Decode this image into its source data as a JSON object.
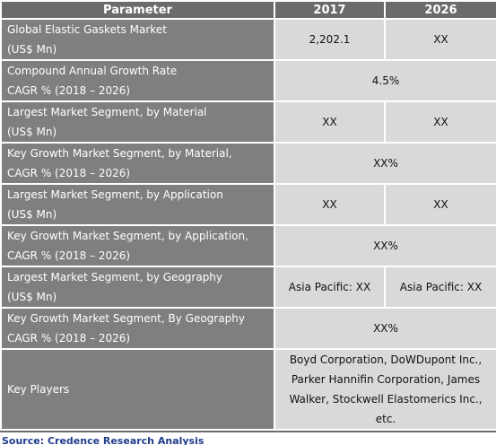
{
  "table": {
    "header": [
      "Parameter",
      "2017",
      "2026"
    ],
    "rows": [
      {
        "label": [
          "Global Elastic Gaskets Market",
          "(US$ Mn)"
        ],
        "values": [
          "2,202.1",
          "XX"
        ]
      },
      {
        "label": [
          "Compound Annual Growth Rate",
          "CAGR % (2018 – 2026)"
        ],
        "values": [
          "4.5%"
        ]
      },
      {
        "label": [
          "Largest Market Segment, by Material",
          "(US$ Mn)"
        ],
        "values": [
          "XX",
          "XX"
        ]
      },
      {
        "label": [
          "Key Growth Market Segment, by Material,",
          "CAGR % (2018 – 2026)"
        ],
        "values": [
          "XX%"
        ]
      },
      {
        "label": [
          "Largest Market Segment, by Application",
          "(US$ Mn)"
        ],
        "values": [
          "XX",
          "XX"
        ]
      },
      {
        "label": [
          "Key Growth Market Segment, by Application,",
          "CAGR % (2018 – 2026)"
        ],
        "values": [
          "XX%"
        ]
      },
      {
        "label": [
          "Largest Market Segment, by Geography",
          "(US$ Mn)"
        ],
        "values": [
          "Asia Pacific: XX",
          "Asia Pacific: XX"
        ]
      },
      {
        "label": [
          "Key Growth Market Segment, By Geography",
          "CAGR % (2018 – 2026)"
        ],
        "values": [
          "XX%"
        ]
      },
      {
        "label": [
          "Key Players"
        ],
        "values": [
          [
            "Boyd Corporation, DoWDupont Inc.,",
            "Parker Hannifin Corporation, James",
            "Walker, Stockwell Elastomerics Inc.,",
            "etc."
          ]
        ]
      }
    ]
  },
  "source": "Source: Credence Research Analysis"
}
